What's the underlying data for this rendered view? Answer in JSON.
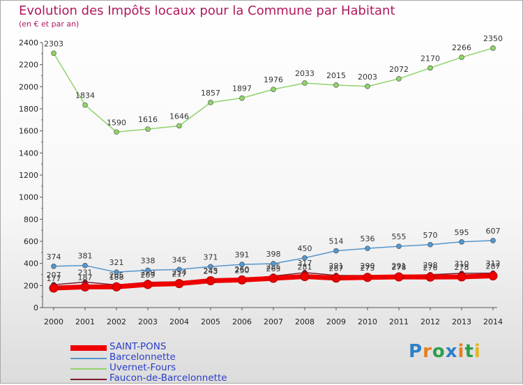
{
  "chart_data": {
    "type": "line",
    "title": "Evolution des Impôts locaux pour la Commune par Habitant",
    "subtitle": "(en € et par an)",
    "x": [
      2000,
      2001,
      2002,
      2003,
      2004,
      2005,
      2006,
      2007,
      2008,
      2009,
      2010,
      2011,
      2012,
      2013,
      2014
    ],
    "ylim": [
      0,
      2400
    ],
    "yticks": [
      0,
      200,
      400,
      600,
      800,
      1000,
      1200,
      1400,
      1600,
      1800,
      2000,
      2200,
      2400
    ],
    "grid": false,
    "legend_position": "bottom-left",
    "series": [
      {
        "name": "Faucon-de-Barcelonnette",
        "color": "#7a1a2a",
        "values": [
          207,
          231,
          205,
          229,
          234,
          245,
          260,
          285,
          317,
          291,
          290,
          291,
          298,
          310,
          312
        ]
      },
      {
        "name": "Uvernet-Fours",
        "color": "#8fd46a",
        "values": [
          2303,
          1834,
          1590,
          1616,
          1646,
          1857,
          1897,
          1976,
          2033,
          2015,
          2003,
          2072,
          2170,
          2266,
          2350
        ]
      },
      {
        "name": "Barcelonnette",
        "color": "#5596cc",
        "values": [
          374,
          381,
          321,
          338,
          345,
          371,
          391,
          398,
          450,
          514,
          536,
          555,
          570,
          595,
          607
        ]
      },
      {
        "name": "SAINT-PONS",
        "color": "#ee0000",
        "values": [
          177,
          187,
          188,
          209,
          217,
          243,
          250,
          265,
          281,
          267,
          273,
          278,
          276,
          278,
          287
        ]
      }
    ],
    "legend": [
      {
        "name": "SAINT-PONS",
        "color": "#ee0000",
        "thickness": 8
      },
      {
        "name": "Barcelonnette",
        "color": "#5596cc",
        "thickness": 2
      },
      {
        "name": "Uvernet-Fours",
        "color": "#8fd46a",
        "thickness": 2
      },
      {
        "name": "Faucon-de-Barcelonnette",
        "color": "#7a1a2a",
        "thickness": 2
      }
    ]
  },
  "brand": {
    "letters": [
      "P",
      "r",
      "o",
      "x",
      "i",
      "t",
      "i"
    ],
    "colors": [
      "#2e7fc8",
      "#e67e22",
      "#2e9e4a",
      "#2e7fc8",
      "#e67e22",
      "#2e9e4a",
      "#e6b422"
    ]
  }
}
